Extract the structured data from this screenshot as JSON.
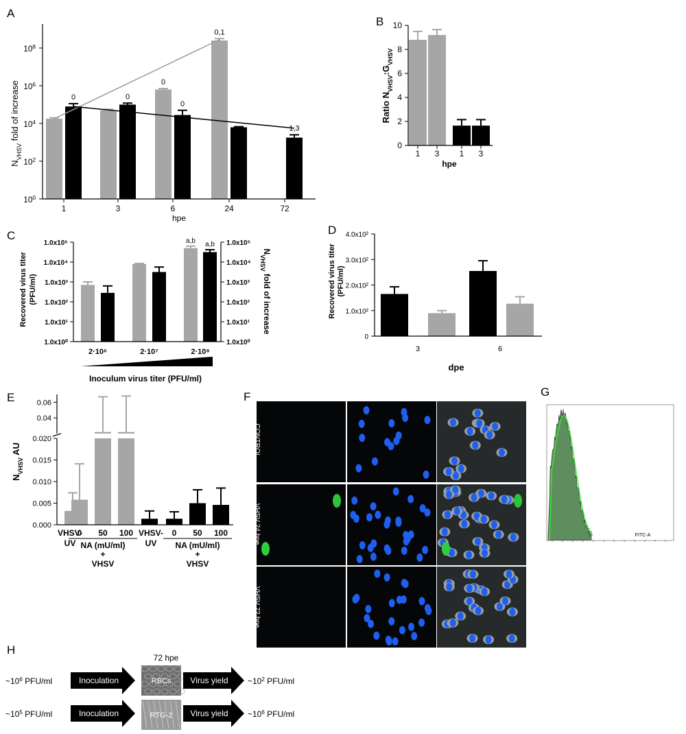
{
  "panels": {
    "A": {
      "letter": "A",
      "ylabel_main": "N",
      "ylabel_sub": "VHSV",
      "ylabel_rest": " fold of increase",
      "xlabel": "hpe",
      "ytick_base": "10",
      "ytick_exps": [
        "0",
        "2",
        "4",
        "6",
        "8"
      ],
      "colors": {
        "grey": "#a6a6a6",
        "black": "#000000"
      }
    },
    "B": {
      "letter": "B",
      "ylabel_pre": "Ratio N",
      "ylabel_sub1": "VHSV",
      "ylabel_mid": ":G",
      "ylabel_sub2": "VHSV",
      "xlabel": "hpe"
    },
    "C": {
      "letter": "C",
      "ylabel_left_1": "Recovered virus titer",
      "ylabel_left_2": "(PFU/ml)",
      "ylabel_right_main": "N",
      "ylabel_right_sub": "VHSV",
      "ylabel_right_rest": " fold of increase",
      "xlabel": "Inoculum virus titer (PFU/ml)",
      "tick_labels": [
        "1.0x10⁵",
        "1.0x10⁴",
        "1.0x10³",
        "1.0x10²",
        "1.0x10¹",
        "1.0x10⁰"
      ]
    },
    "D": {
      "letter": "D",
      "ylabel_1": "Recovered virus titer",
      "ylabel_2": "(PFU/ml)",
      "xlabel": "dpe",
      "tick_labels": [
        "0",
        "1.0x10²",
        "2.0x10²",
        "3.0x10²",
        "4.0x10²"
      ]
    },
    "E": {
      "letter": "E",
      "ylabel_main": "N",
      "ylabel_sub": "VHSV",
      "ylabel_rest": " AU",
      "upper_ticks": [
        "0.06",
        "0.04"
      ],
      "lower_ticks": [
        "0.020",
        "0.015",
        "0.010",
        "0.005",
        "0.000"
      ],
      "cat_vhsv": "VHSV-",
      "cat_uv": "UV",
      "dose_labels": [
        "0",
        "50",
        "100"
      ],
      "na_label": "NA (mU/ml)",
      "plus": "+",
      "vhsv": "VHSV"
    },
    "F": {
      "letter": "F",
      "rows": [
        "CONTROL",
        "VHSV 24 hpe",
        "VHSV 72 hpe"
      ]
    },
    "G": {
      "letter": "G",
      "axis_label": "FITC-A"
    },
    "H": {
      "letter": "H",
      "time_label": "72 hpe",
      "rows": [
        {
          "input_pre": "~10",
          "input_exp": "6",
          "input_post": " PFU/ml",
          "arrow1": "Inoculation",
          "cells": "RBCs",
          "arrow2": "Virus yield",
          "output_pre": "~10",
          "output_exp": "2",
          "output_post": " PFU/ml"
        },
        {
          "input_pre": "~10",
          "input_exp": "5",
          "input_post": " PFU/ml",
          "arrow1": "Inoculation",
          "cells": "RTG-2",
          "arrow2": "Virus yield",
          "output_pre": "~10",
          "output_exp": "6",
          "output_post": " PFU/ml"
        }
      ]
    }
  },
  "chart_data": [
    {
      "panel": "A",
      "type": "bar",
      "scale": "log10",
      "categories": [
        "1",
        "3",
        "6",
        "24",
        "72"
      ],
      "ylim_log10": [
        0,
        9
      ],
      "series": [
        {
          "color": "grey",
          "values_log10": [
            4.25,
            4.7,
            5.8,
            8.4,
            null
          ],
          "err_log10": [
            0.05,
            0.05,
            0.05,
            0.1,
            null
          ]
        },
        {
          "color": "black",
          "values_log10": [
            4.9,
            5.0,
            4.45,
            3.8,
            3.25
          ],
          "err_log10": [
            0.15,
            0.08,
            0.25,
            0.03,
            0.15
          ]
        }
      ],
      "trend_lines": [
        {
          "color": "grey",
          "x": [
            "1",
            "24"
          ],
          "y_log10": [
            4.25,
            8.45
          ]
        },
        {
          "color": "black",
          "x": [
            "1",
            "72"
          ],
          "y_log10": [
            4.9,
            3.75
          ]
        }
      ],
      "annotations": [
        {
          "series": "black",
          "category": "1",
          "text": "0"
        },
        {
          "series": "black",
          "category": "3",
          "text": "0"
        },
        {
          "series": "grey",
          "category": "6",
          "text": "0"
        },
        {
          "series": "black",
          "category": "6",
          "text": "0"
        },
        {
          "series": "grey",
          "category": "24",
          "text": "0,1"
        },
        {
          "series": "black",
          "category": "72",
          "text": "1,3"
        }
      ]
    },
    {
      "panel": "B",
      "type": "bar",
      "categories": [
        "1",
        "3",
        "1",
        "3"
      ],
      "colors": [
        "grey",
        "grey",
        "black",
        "black"
      ],
      "values": [
        8.8,
        9.2,
        1.65,
        1.65
      ],
      "errors": [
        0.7,
        0.45,
        0.5,
        0.5
      ],
      "ylim": [
        0,
        10
      ],
      "yticks": [
        "0",
        "2",
        "4",
        "6",
        "8",
        "10"
      ]
    },
    {
      "panel": "C",
      "type": "bar",
      "scale": "log10",
      "categories": [
        "2·10⁶",
        "2·10⁷",
        "2·10⁸"
      ],
      "ylim_log10": [
        0,
        5
      ],
      "series": [
        {
          "color": "grey",
          "values_log10": [
            2.85,
            3.9,
            4.7
          ],
          "err_log10": [
            0.15,
            0.03,
            0.1
          ]
        },
        {
          "color": "black",
          "values_log10": [
            2.45,
            3.5,
            4.5
          ],
          "err_log10": [
            0.35,
            0.25,
            0.12
          ]
        }
      ],
      "annotations": [
        {
          "series": "grey",
          "category": "2·10⁸",
          "text": "a,b"
        },
        {
          "series": "black",
          "category": "2·10⁸",
          "text": "a,b"
        }
      ]
    },
    {
      "panel": "D",
      "type": "bar",
      "categories": [
        "3",
        "6"
      ],
      "ylim": [
        0,
        400
      ],
      "bars": [
        {
          "category": "3",
          "color": "black",
          "value": 165,
          "error": 28
        },
        {
          "category": "3",
          "color": "grey",
          "value": 90,
          "error": 10
        },
        {
          "category": "6",
          "color": "black",
          "value": 255,
          "error": 40
        },
        {
          "category": "6",
          "color": "grey",
          "value": 127,
          "error": 27
        }
      ]
    },
    {
      "panel": "E",
      "type": "bar",
      "broken_axis": true,
      "categories": [
        "VHSV-UV",
        "0",
        "50",
        "100",
        "VHSV-UV",
        "0",
        "50",
        "100"
      ],
      "colors": [
        "grey",
        "grey",
        "grey",
        "grey",
        "black",
        "black",
        "black",
        "black"
      ],
      "values": [
        0.0032,
        0.0058,
        0.021,
        0.021,
        0.0014,
        0.0014,
        0.005,
        0.0046
      ],
      "errors": [
        0.0042,
        0.0083,
        0.046,
        0.047,
        0.0018,
        0.0016,
        0.0031,
        0.0039
      ],
      "ylim_lower": [
        0,
        0.02
      ],
      "ylim_upper": [
        0.02,
        0.07
      ]
    }
  ]
}
